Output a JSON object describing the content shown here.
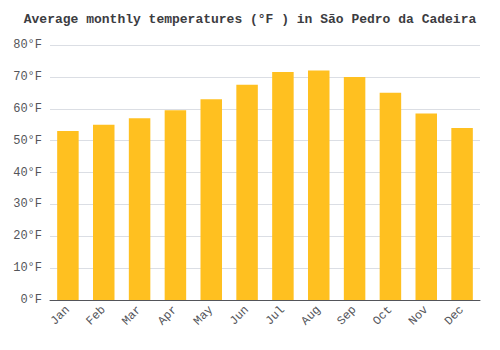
{
  "chart_data": {
    "type": "bar",
    "title": "Average monthly temperatures (°F ) in São Pedro da Cadeira",
    "categories": [
      "Jan",
      "Feb",
      "Mar",
      "Apr",
      "May",
      "Jun",
      "Jul",
      "Aug",
      "Sep",
      "Oct",
      "Nov",
      "Dec"
    ],
    "values": [
      53,
      55,
      57,
      59.5,
      63,
      67.5,
      71.5,
      72,
      70,
      65,
      58.5,
      54
    ],
    "color": "#FFC020",
    "ylim": [
      0,
      80
    ],
    "yticks": [
      {
        "value": 0,
        "label": "0°F"
      },
      {
        "value": 10,
        "label": "10°F"
      },
      {
        "value": 20,
        "label": "20°F"
      },
      {
        "value": 30,
        "label": "30°F"
      },
      {
        "value": 40,
        "label": "40°F"
      },
      {
        "value": 50,
        "label": "50°F"
      },
      {
        "value": 60,
        "label": "60°F"
      },
      {
        "value": 70,
        "label": "70°F"
      },
      {
        "value": 80,
        "label": "80°F"
      }
    ],
    "grid": true
  }
}
